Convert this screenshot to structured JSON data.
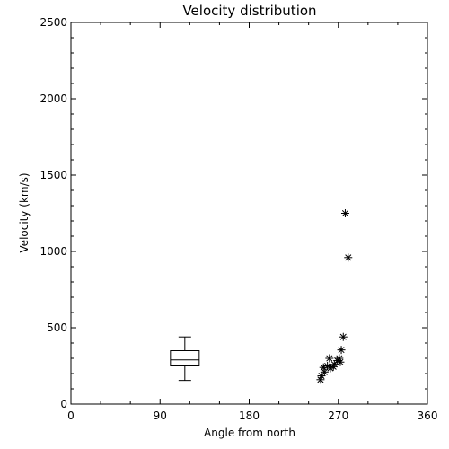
{
  "chart_data": {
    "type": "scatter",
    "title": "Velocity distribution",
    "xlabel": "Angle from north",
    "ylabel": "Velocity (km/s)",
    "xlim": [
      0,
      360
    ],
    "ylim": [
      0,
      2500
    ],
    "xticks": [
      "0",
      "90",
      "180",
      "270",
      "360"
    ],
    "yticks": [
      "0",
      "500",
      "1000",
      "1500",
      "2000",
      "2500"
    ],
    "grid": false,
    "series": [
      {
        "marker": "asterisk",
        "points": [
          {
            "x": 252,
            "y": 160
          },
          {
            "x": 253,
            "y": 185
          },
          {
            "x": 256,
            "y": 210
          },
          {
            "x": 255,
            "y": 240
          },
          {
            "x": 259,
            "y": 250
          },
          {
            "x": 262,
            "y": 235
          },
          {
            "x": 261,
            "y": 300
          },
          {
            "x": 265,
            "y": 245
          },
          {
            "x": 266,
            "y": 260
          },
          {
            "x": 269,
            "y": 285
          },
          {
            "x": 271,
            "y": 300
          },
          {
            "x": 272,
            "y": 275
          },
          {
            "x": 273,
            "y": 355
          },
          {
            "x": 275,
            "y": 440
          },
          {
            "x": 277,
            "y": 1250
          },
          {
            "x": 280,
            "y": 960
          }
        ]
      }
    ],
    "boxplot": {
      "x": 115,
      "min": 155,
      "q1": 250,
      "median": 290,
      "q3": 350,
      "max": 440
    }
  }
}
